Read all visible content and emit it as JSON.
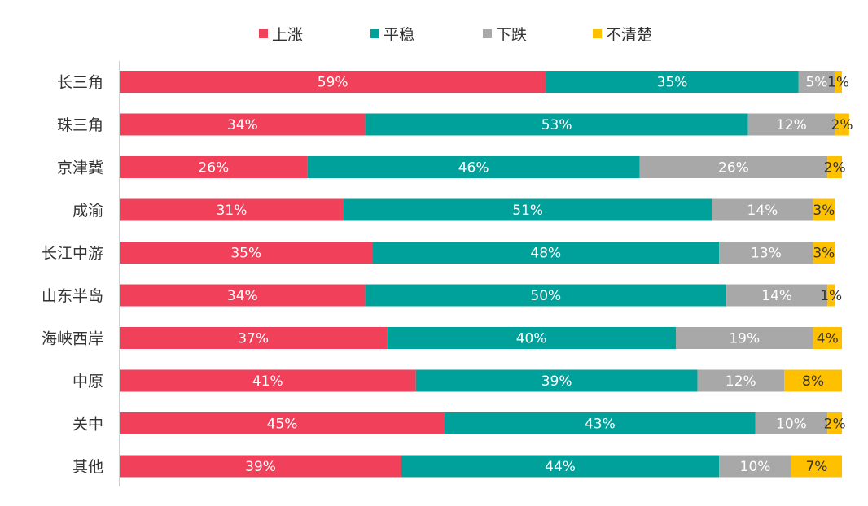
{
  "chart_data": {
    "type": "bar",
    "orientation": "horizontal",
    "stacked": true,
    "percent_format": "%",
    "categories": [
      "长三角",
      "珠三角",
      "京津冀",
      "成渝",
      "长江中游",
      "山东半岛",
      "海峡西岸",
      "中原",
      "关中",
      "其他"
    ],
    "series": [
      {
        "name": "上涨",
        "color": "#f0405a",
        "label_color": "#ffffff",
        "values": [
          59,
          34,
          26,
          31,
          35,
          34,
          37,
          41,
          45,
          39
        ]
      },
      {
        "name": "平稳",
        "color": "#00a19a",
        "label_color": "#ffffff",
        "values": [
          35,
          53,
          46,
          51,
          48,
          50,
          40,
          39,
          43,
          44
        ]
      },
      {
        "name": "下跌",
        "color": "#a8a8a8",
        "label_color": "#ffffff",
        "values": [
          5,
          12,
          26,
          14,
          13,
          14,
          19,
          12,
          10,
          10
        ]
      },
      {
        "name": "不清楚",
        "color": "#ffc000",
        "label_color": "#333333",
        "values": [
          1,
          2,
          2,
          3,
          3,
          1,
          4,
          8,
          2,
          7
        ]
      }
    ],
    "xlim": [
      0,
      100
    ],
    "grid": false,
    "legend_position": "top"
  }
}
